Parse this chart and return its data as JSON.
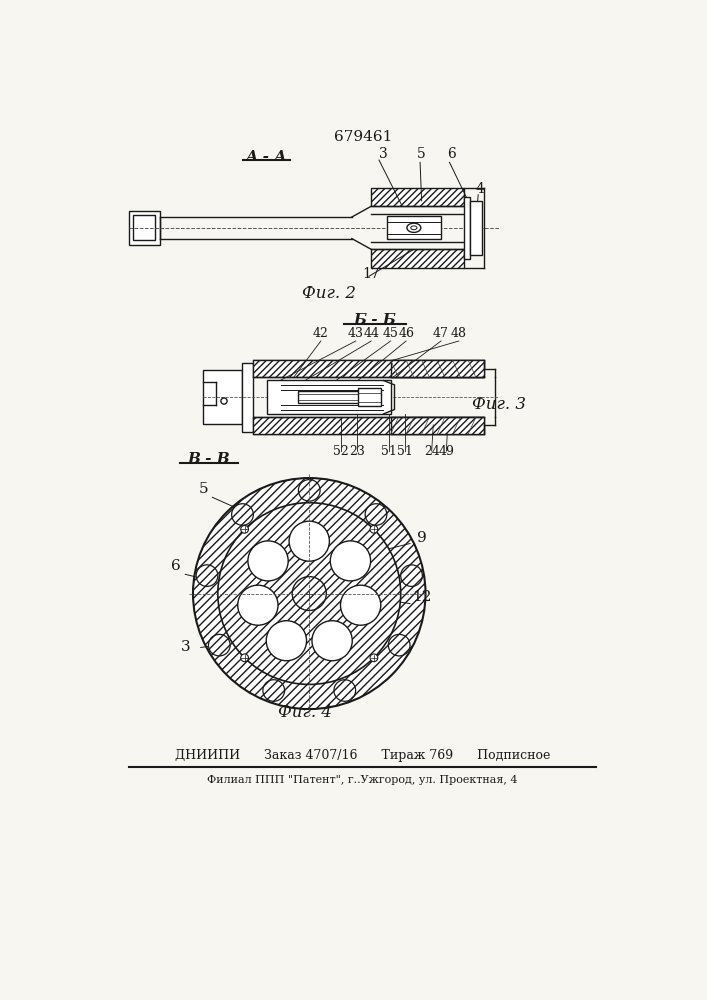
{
  "patent_number": "679461",
  "fig2_label": "А - А",
  "fig3_label": "Б - Б",
  "fig4_label": "В - В",
  "fig2_caption": "Фиг. 2",
  "fig3_caption": "Фиг. 3",
  "fig4_caption": "Фиг. 4",
  "bottom_line1": "ДНИИПИ      Заказ 4707/16      Тираж 769      Подписное",
  "bottom_line2": "Филиал ППП \"Патент\", г..Ужгород, ул. Проектная, 4",
  "bg_color": "#f8f6f0",
  "line_color": "#1a1a1a",
  "hatch_color": "#333333"
}
